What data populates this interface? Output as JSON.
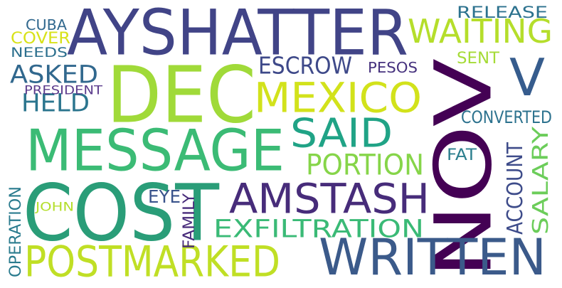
{
  "words": [
    {
      "id": "aysHATTER",
      "text": "AYSHATTER",
      "color": "#414487"
    },
    {
      "id": "dec",
      "text": "DEC",
      "color": "#a0da39"
    },
    {
      "id": "nov",
      "text": "NOV",
      "color": "#440154"
    },
    {
      "id": "cost",
      "text": "COST",
      "color": "#2a9d78"
    },
    {
      "id": "message",
      "text": "MESSAGE",
      "color": "#3bbb75"
    },
    {
      "id": "mexico",
      "text": "MEXICO",
      "color": "#d2e21b"
    },
    {
      "id": "said",
      "text": "SAID",
      "color": "#20a386"
    },
    {
      "id": "amstash",
      "text": "AMSTASH",
      "color": "#472c7a"
    },
    {
      "id": "written",
      "text": "WRITTEN",
      "color": "#3b5a8a"
    },
    {
      "id": "postmarked",
      "text": "POSTMARKED",
      "color": "#c0df25"
    },
    {
      "id": "waiting",
      "text": "WAITING",
      "color": "#b5de2b"
    },
    {
      "id": "v",
      "text": "V",
      "color": "#365c8d"
    },
    {
      "id": "exfiltration",
      "text": "EXFILTRATION",
      "color": "#3aba76"
    },
    {
      "id": "portion",
      "text": "PORTION",
      "color": "#86d549"
    },
    {
      "id": "escrow",
      "text": "ESCROW",
      "color": "#3e4989"
    },
    {
      "id": "asked",
      "text": "ASKED",
      "color": "#31688e"
    },
    {
      "id": "held",
      "text": "HELD",
      "color": "#2b758e"
    },
    {
      "id": "salary",
      "text": "SALARY",
      "color": "#6ccd5a"
    },
    {
      "id": "account",
      "text": "ACCOUNT",
      "color": "#3e4c8a"
    },
    {
      "id": "converted",
      "text": "CONVERTED",
      "color": "#2c728e"
    },
    {
      "id": "release",
      "text": "RELEASE",
      "color": "#2c728e"
    },
    {
      "id": "sent",
      "text": "SENT",
      "color": "#a5db36"
    },
    {
      "id": "pesos",
      "text": "PESOS",
      "color": "#46327e"
    },
    {
      "id": "cuba",
      "text": "CUBA",
      "color": "#31688e"
    },
    {
      "id": "cover",
      "text": "COVER",
      "color": "#d8e219"
    },
    {
      "id": "needs",
      "text": "NEEDS",
      "color": "#2d708e"
    },
    {
      "id": "president",
      "text": "PRESIDENT",
      "color": "#5b3b8c"
    },
    {
      "id": "fat",
      "text": "FAT",
      "color": "#2c7f8e"
    },
    {
      "id": "eye",
      "text": "EYE",
      "color": "#3a548c"
    },
    {
      "id": "family",
      "text": "FAMILY",
      "color": "#472a7a"
    },
    {
      "id": "john",
      "text": "JOHN",
      "color": "#b4de2c"
    },
    {
      "id": "operation",
      "text": "OPERATION",
      "color": "#2a7b8e"
    }
  ]
}
